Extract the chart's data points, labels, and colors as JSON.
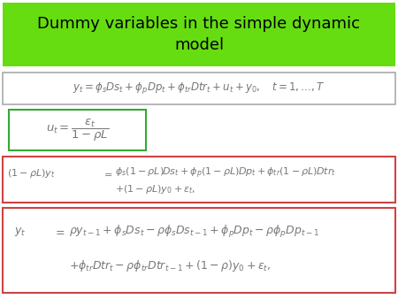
{
  "title": "Dummy variables in the simple dynamic\nmodel",
  "title_bg": "#66dd11",
  "title_color": "#000000",
  "title_fontsize": 13,
  "eq1": "$y_t = \\phi_s Ds_t + \\phi_p Dp_t + \\phi_{tr} Dtr_t + u_t + y_0, \\quad t = 1, \\ldots, T$",
  "eq2": "$u_t = \\dfrac{\\varepsilon_t}{1 - \\rho L}$",
  "eq3_lhs": "$(1 - \\rho L)y_t$",
  "eq3_eq": "$=$",
  "eq3_rhs1": "$\\phi_s(1 - \\rho L)Ds_t + \\phi_p(1 - \\rho L)Dp_t + \\phi_{tr}(1 - \\rho L)Dtr_t$",
  "eq3_rhs2": "$+(1 - \\rho L)y_0 + \\varepsilon_t,$",
  "eq4_lhs": "$y_t$",
  "eq4_eq": "$=$",
  "eq4_rhs1": "$\\rho y_{t-1} + \\phi_s Ds_t - \\rho\\phi_s Ds_{t-1} + \\phi_p Dp_t - \\rho\\phi_p Dp_{t-1}$",
  "eq4_rhs2": "$+\\phi_{tr} Dtr_t - \\rho\\phi_{tr} Dtr_{t-1} + (1-\\rho)y_0 + \\varepsilon_t,$",
  "box1_color": "#aaaaaa",
  "box2_color": "#33aa33",
  "box3_color": "#cc4444",
  "box4_color": "#cc4444",
  "bg_color": "#ffffff",
  "text_color": "#777777"
}
